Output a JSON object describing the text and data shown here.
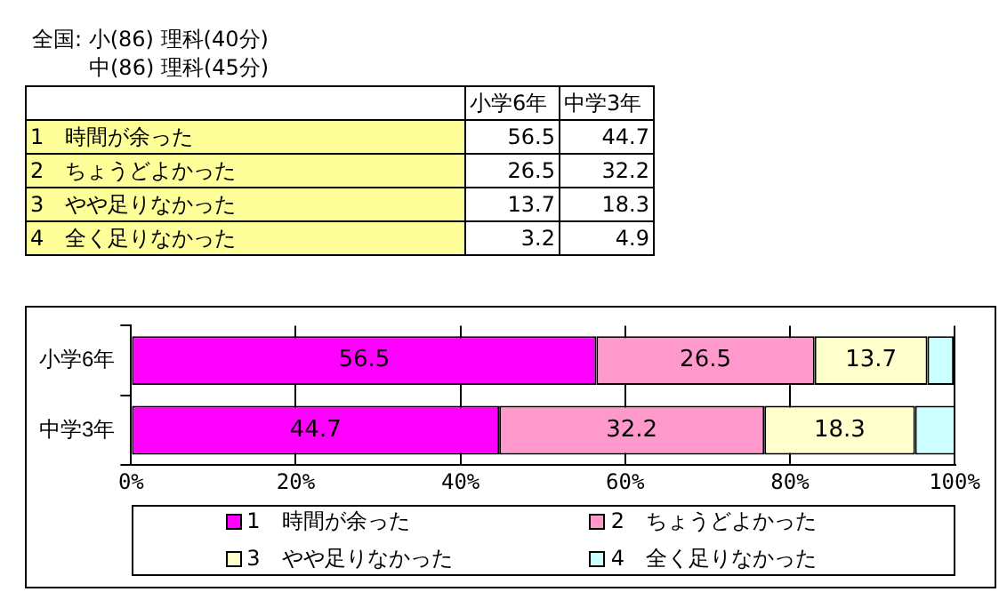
{
  "chart_data": [
    {
      "type": "other",
      "title": "全国: 小(86) 理科(40分)",
      "subtitle": "中(86) 理科(45分)",
      "categories": [
        "小学6年",
        "中学3年"
      ],
      "series": [
        {
          "name": "1　時間が余った",
          "values": [
            56.5,
            44.7
          ]
        },
        {
          "name": "2　ちょうどよかった",
          "values": [
            26.5,
            32.2
          ]
        },
        {
          "name": "3　やや足りなかった",
          "values": [
            13.7,
            18.3
          ]
        },
        {
          "name": "4　全く足りなかった",
          "values": [
            3.2,
            4.9
          ]
        }
      ],
      "data_labels": true
    },
    {
      "type": "bar",
      "orientation": "horizontal",
      "stacked": true,
      "categories": [
        "小学6年",
        "中学3年"
      ],
      "series": [
        {
          "name": "1　時間が余った",
          "color": "#ff00ff",
          "values": [
            56.5,
            44.7
          ],
          "value_labels": [
            "56.5",
            "44.7"
          ]
        },
        {
          "name": "2　ちょうどよかった",
          "color": "#ff99cc",
          "values": [
            26.5,
            32.2
          ],
          "value_labels": [
            "26.5",
            "32.2"
          ]
        },
        {
          "name": "3　やや足りなかった",
          "color": "#ffffcc",
          "values": [
            13.7,
            18.3
          ],
          "value_labels": [
            "13.7",
            "18.3"
          ]
        },
        {
          "name": "4　全く足りなかった",
          "color": "#ccffff",
          "values": [
            3.2,
            4.9
          ],
          "value_labels": [
            null,
            null
          ]
        }
      ],
      "xlim": [
        0,
        100.1
      ],
      "xticks": [
        {
          "value": 0,
          "label": "0%"
        },
        {
          "value": 20,
          "label": "20%"
        },
        {
          "value": 40,
          "label": "40%"
        },
        {
          "value": 60,
          "label": "60%"
        },
        {
          "value": 80,
          "label": "80%"
        },
        {
          "value": 100,
          "label": "100%"
        }
      ],
      "grid": "x",
      "legend": "bottom"
    }
  ]
}
